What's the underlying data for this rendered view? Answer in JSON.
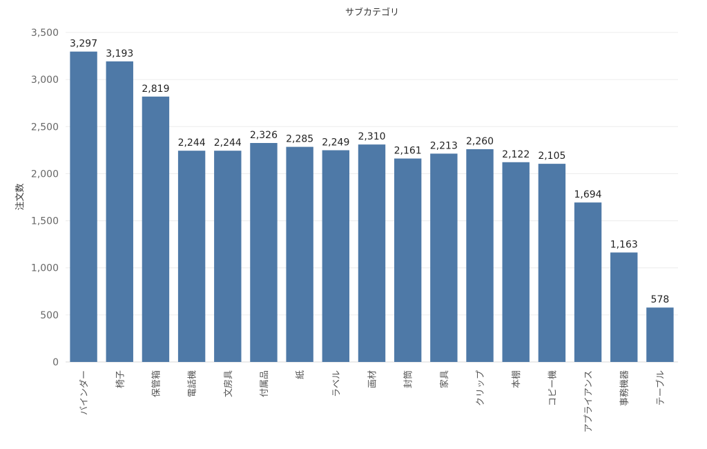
{
  "chart_data": {
    "type": "bar",
    "title": "サブカテゴリ",
    "xlabel": "",
    "ylabel": "注文数",
    "ylim": [
      0,
      3500
    ],
    "yticks": [
      0,
      500,
      1000,
      1500,
      2000,
      2500,
      3000,
      3500
    ],
    "ytick_labels": [
      "0",
      "500",
      "1,000",
      "1,500",
      "2,000",
      "2,500",
      "3,000",
      "3,500"
    ],
    "categories": [
      "バインダー",
      "椅子",
      "保管箱",
      "電話機",
      "文房具",
      "付属品",
      "紙",
      "ラベル",
      "画材",
      "封筒",
      "家具",
      "クリップ",
      "本棚",
      "コピー機",
      "アプライアンス",
      "事務機器",
      "テーブル"
    ],
    "values": [
      3297,
      3193,
      2819,
      2244,
      2244,
      2326,
      2285,
      2249,
      2310,
      2161,
      2213,
      2260,
      2122,
      2105,
      1694,
      1163,
      578
    ],
    "value_labels": [
      "3,297",
      "3,193",
      "2,819",
      "2,244",
      "2,244",
      "2,326",
      "2,285",
      "2,249",
      "2,310",
      "2,161",
      "2,213",
      "2,260",
      "2,122",
      "2,105",
      "1,694",
      "1,163",
      "578"
    ],
    "grid": true,
    "legend": "none",
    "bar_color": "#4e79a7",
    "grid_color": "#ececec"
  }
}
